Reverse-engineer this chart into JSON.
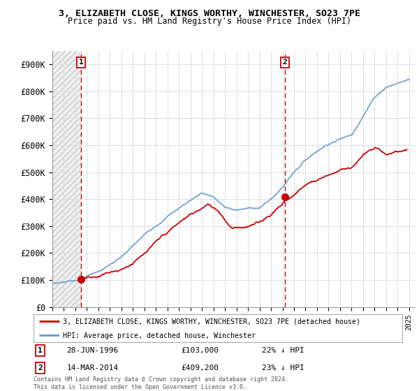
{
  "title_line1": "3, ELIZABETH CLOSE, KINGS WORTHY, WINCHESTER, SO23 7PE",
  "title_line2": "Price paid vs. HM Land Registry's House Price Index (HPI)",
  "property_label": "3, ELIZABETH CLOSE, KINGS WORTHY, WINCHESTER, SO23 7PE (detached house)",
  "hpi_label": "HPI: Average price, detached house, Winchester",
  "annotation1": {
    "num": "1",
    "date": "28-JUN-1996",
    "price": "£103,000",
    "note": "22% ↓ HPI"
  },
  "annotation2": {
    "num": "2",
    "date": "14-MAR-2014",
    "price": "£409,200",
    "note": "23% ↓ HPI"
  },
  "footer": "Contains HM Land Registry data © Crown copyright and database right 2024.\nThis data is licensed under the Open Government Licence v3.0.",
  "property_color": "#cc0000",
  "hpi_color": "#6699cc",
  "marker1_x": 1996.49,
  "marker1_y": 103000,
  "marker2_x": 2014.2,
  "marker2_y": 409200,
  "vline1_x": 1996.49,
  "vline2_x": 2014.2,
  "ylim": [
    0,
    950000
  ],
  "xlim": [
    1994,
    2025.5
  ],
  "yticks": [
    0,
    100000,
    200000,
    300000,
    400000,
    500000,
    600000,
    700000,
    800000,
    900000
  ],
  "ytick_labels": [
    "£0",
    "£100K",
    "£200K",
    "£300K",
    "£400K",
    "£500K",
    "£600K",
    "£700K",
    "£800K",
    "£900K"
  ]
}
